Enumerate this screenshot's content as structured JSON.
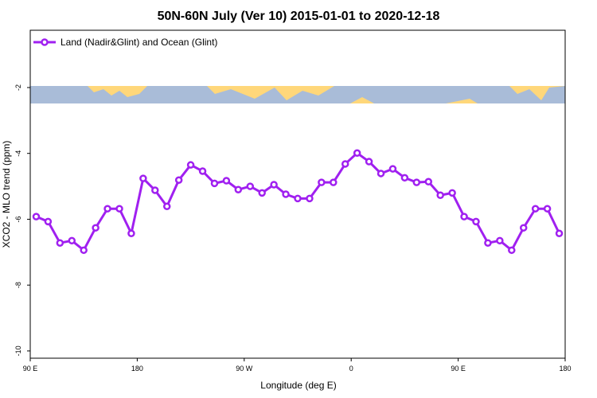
{
  "chart_data": {
    "type": "line",
    "title": "50N-60N July (Ver 10)   2015-01-01 to 2020-12-18",
    "x_label": "Longitude (deg E)",
    "y_label": "XCO2 - MLO trend (ppm)",
    "x": [
      95,
      105,
      115,
      125,
      135,
      145,
      155,
      165,
      175,
      185,
      195,
      205,
      215,
      225,
      235,
      245,
      255,
      265,
      275,
      285,
      295,
      305,
      315,
      325,
      335,
      345,
      355,
      365,
      375,
      385,
      395,
      405,
      415,
      425,
      435,
      445,
      455,
      465,
      475,
      485,
      495,
      505,
      515,
      525,
      535
    ],
    "series": [
      {
        "name": "Land (Nadir&Glint) and Ocean (Glint)",
        "color": "#a020f0",
        "values": [
          -5.92,
          -6.07,
          -6.72,
          -6.65,
          -6.94,
          -6.26,
          -5.68,
          -5.68,
          -6.43,
          -4.76,
          -5.12,
          -5.61,
          -4.81,
          -4.35,
          -4.54,
          -4.91,
          -4.83,
          -5.1,
          -5.0,
          -5.2,
          -4.95,
          -5.24,
          -5.37,
          -5.37,
          -4.88,
          -4.88,
          -4.32,
          -3.99,
          -4.25,
          -4.61,
          -4.47,
          -4.74,
          -4.88,
          -4.86,
          -5.27,
          -5.2,
          -5.92,
          -6.07,
          -6.72,
          -6.65,
          -6.94,
          -6.26,
          -5.68,
          -5.68,
          -6.43
        ]
      }
    ],
    "xlim": [
      90,
      540
    ],
    "xticks": [
      {
        "value": 90,
        "label": "90 E"
      },
      180,
      {
        "value": 270,
        "label": "90 W"
      },
      {
        "value": 360,
        "label": "0"
      },
      {
        "value": 450,
        "label": "90 E"
      },
      {
        "value": 540,
        "label": "180"
      }
    ],
    "ylim": [
      -10.22,
      -0.26
    ],
    "yticks": [
      -10,
      -8,
      -6,
      -4,
      -2
    ],
    "legend": "top-left",
    "grid": false
  }
}
